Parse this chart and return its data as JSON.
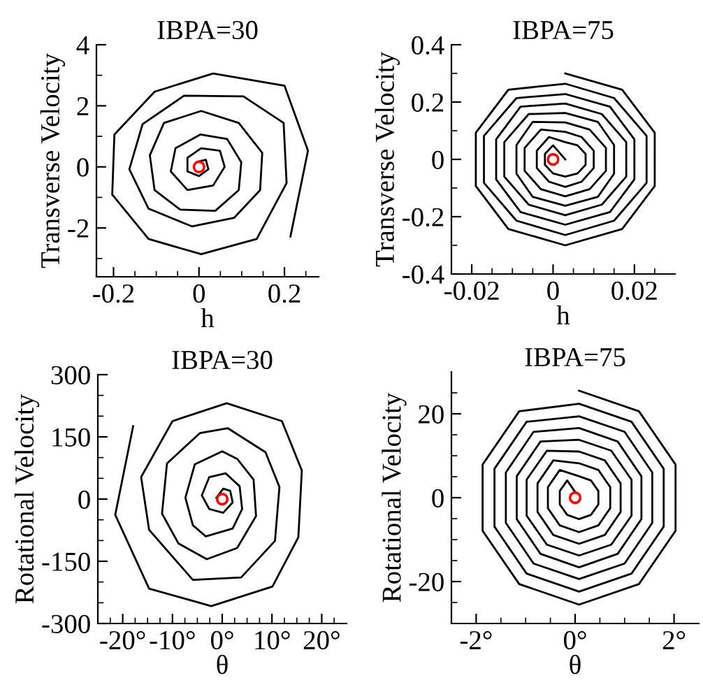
{
  "chart_data": [
    {
      "type": "line",
      "title": "IBPA=30",
      "xlabel": "h",
      "ylabel": "Transverse Velocity",
      "xlim": [
        -0.24,
        0.28
      ],
      "ylim": [
        -3.6,
        4
      ],
      "xticks": [
        -0.2,
        {
          "value": -0.15,
          "label": null
        },
        {
          "value": -0.1,
          "label": null
        },
        {
          "value": -0.05,
          "label": null
        },
        0,
        {
          "value": 0.05,
          "label": null
        },
        {
          "value": 0.1,
          "label": null
        },
        {
          "value": 0.15,
          "label": null
        },
        0.2,
        {
          "value": 0.25,
          "label": null
        }
      ],
      "yticks": [
        {
          "value": -3,
          "label": null
        },
        -2,
        {
          "value": -1,
          "label": null
        },
        0,
        {
          "value": 1,
          "label": null
        },
        2,
        {
          "value": 3,
          "label": null
        },
        4
      ],
      "series": [
        {
          "color": "#000000",
          "x": [
            0.214,
            0.255,
            0.2,
            0.033,
            -0.104,
            -0.198,
            -0.203,
            -0.118,
            0.005,
            0.135,
            0.205,
            0.198,
            0.104,
            -0.035,
            -0.132,
            -0.163,
            -0.118,
            -0.016,
            0.082,
            0.143,
            0.148,
            0.093,
            0.005,
            -0.082,
            -0.115,
            -0.104,
            -0.044,
            0.038,
            0.093,
            0.099,
            0.066,
            0.003,
            -0.055,
            -0.066,
            -0.027,
            0.033,
            0.06,
            0.049,
            0.005,
            -0.027,
            -0.027,
            0.0,
            0.022,
            0.016,
            0.0,
            -0.005
          ],
          "values": [
            -2.28,
            0.53,
            2.66,
            3.06,
            2.46,
            1.06,
            -0.91,
            -2.36,
            -2.86,
            -2.36,
            -0.53,
            1.44,
            2.31,
            2.33,
            1.4,
            -0.08,
            -1.37,
            -1.95,
            -1.67,
            -0.76,
            0.46,
            1.44,
            1.83,
            1.44,
            0.38,
            -0.76,
            -1.4,
            -1.44,
            -0.76,
            0.15,
            0.91,
            1.06,
            0.61,
            -0.15,
            -0.76,
            -0.61,
            0.0,
            0.53,
            0.61,
            0.3,
            -0.15,
            -0.3,
            -0.08,
            0.23,
            0.18,
            0.0
          ]
        },
        {
          "type": "scatter",
          "marker": "circle",
          "color": "#ff0000",
          "x": [
            0
          ],
          "values": [
            0
          ]
        }
      ]
    },
    {
      "type": "line",
      "title": "IBPA=75",
      "xlabel": "h",
      "ylabel": "Transverse Velocity",
      "xlim": [
        -0.025,
        0.03
      ],
      "ylim": [
        -0.4,
        0.4
      ],
      "xticks": [
        -0.02,
        {
          "value": -0.015,
          "label": null
        },
        {
          "value": -0.01,
          "label": null
        },
        {
          "value": -0.005,
          "label": null
        },
        0,
        {
          "value": 0.005,
          "label": null
        },
        {
          "value": 0.01,
          "label": null
        },
        {
          "value": 0.015,
          "label": null
        },
        0.02,
        {
          "value": 0.025,
          "label": null
        }
      ],
      "yticks": [
        -0.4,
        {
          "value": -0.3,
          "label": null
        },
        -0.2,
        {
          "value": -0.1,
          "label": null
        },
        0,
        {
          "value": 0.1,
          "label": null
        },
        0.2,
        {
          "value": 0.3,
          "label": null
        },
        0.4
      ],
      "series": [
        {
          "color": "#000000",
          "x": [
            0.003,
            0.017,
            0.025,
            0.025,
            0.017,
            0.003,
            -0.011,
            -0.019,
            -0.019,
            -0.011,
            0.003,
            0.015,
            0.023,
            0.023,
            0.015,
            0.003,
            -0.009,
            -0.017,
            -0.017,
            -0.009,
            0.003,
            0.014,
            0.02,
            0.02,
            0.014,
            0.003,
            -0.008,
            -0.014,
            -0.014,
            -0.008,
            0.003,
            0.012,
            0.018,
            0.018,
            0.012,
            0.003,
            -0.006,
            -0.012,
            -0.012,
            -0.006,
            0.003,
            0.011,
            0.015,
            0.015,
            0.011,
            0.003,
            -0.005,
            -0.009,
            -0.009,
            -0.005,
            0.003,
            0.009,
            0.013,
            0.013,
            0.009,
            0.003,
            -0.003,
            -0.007,
            -0.007,
            -0.003,
            0.003,
            0.007,
            0.01,
            0.01,
            0.007,
            0.003,
            -0.001,
            -0.004,
            -0.004,
            -0.001,
            0.003,
            0.006,
            0.008,
            0.008,
            0.006,
            0.003,
            0.0,
            -0.002,
            -0.002,
            0.0,
            0.003
          ],
          "values": [
            0.3,
            0.243,
            0.093,
            -0.093,
            -0.243,
            -0.3,
            -0.243,
            -0.093,
            0.093,
            0.243,
            0.264,
            0.214,
            0.082,
            -0.082,
            -0.214,
            -0.264,
            -0.214,
            -0.082,
            0.082,
            0.214,
            0.228,
            0.184,
            0.07,
            -0.07,
            -0.184,
            -0.228,
            -0.184,
            -0.07,
            0.07,
            0.184,
            0.195,
            0.158,
            0.06,
            -0.06,
            -0.158,
            -0.195,
            -0.158,
            -0.06,
            0.06,
            0.158,
            0.162,
            0.131,
            0.05,
            -0.05,
            -0.131,
            -0.162,
            -0.131,
            -0.05,
            0.05,
            0.131,
            0.129,
            0.104,
            0.04,
            -0.04,
            -0.104,
            -0.129,
            -0.104,
            -0.04,
            0.04,
            0.104,
            0.096,
            0.078,
            0.03,
            -0.03,
            -0.078,
            -0.096,
            -0.078,
            -0.03,
            0.03,
            0.078,
            0.06,
            0.049,
            0.019,
            -0.019,
            -0.049,
            -0.06,
            -0.049,
            -0.019,
            0.019,
            0.049,
            0.0
          ]
        },
        {
          "type": "scatter",
          "marker": "circle",
          "color": "#ff0000",
          "x": [
            0
          ],
          "values": [
            0
          ]
        }
      ]
    },
    {
      "type": "line",
      "title": "IBPA=30",
      "xlabel": "θ",
      "ylabel": "Rotational Velocity",
      "xlim": [
        -25,
        25
      ],
      "ylim": [
        -300,
        300
      ],
      "xticks": [
        {
          "value": -22.5,
          "label": null
        },
        {
          "value": -20,
          "label": "-20°"
        },
        {
          "value": -17.5,
          "label": null
        },
        {
          "value": -15,
          "label": null
        },
        {
          "value": -12.5,
          "label": null
        },
        {
          "value": -10,
          "label": "-10°"
        },
        {
          "value": -7.5,
          "label": null
        },
        {
          "value": -5,
          "label": null
        },
        {
          "value": -2.5,
          "label": null
        },
        {
          "value": 0,
          "label": "0°"
        },
        {
          "value": 2.5,
          "label": null
        },
        {
          "value": 5,
          "label": null
        },
        {
          "value": 7.5,
          "label": null
        },
        {
          "value": 10,
          "label": "10°"
        },
        {
          "value": 12.5,
          "label": null
        },
        {
          "value": 15,
          "label": null
        },
        {
          "value": 17.5,
          "label": null
        },
        {
          "value": 20,
          "label": "20°"
        },
        {
          "value": 22.5,
          "label": null
        }
      ],
      "yticks": [
        -300,
        {
          "value": -250,
          "label": null
        },
        {
          "value": -200,
          "label": null
        },
        -150,
        {
          "value": -100,
          "label": null
        },
        {
          "value": -50,
          "label": null
        },
        0,
        {
          "value": 50,
          "label": null
        },
        {
          "value": 100,
          "label": null
        },
        150,
        {
          "value": 200,
          "label": null
        },
        {
          "value": 250,
          "label": null
        },
        300
      ],
      "series": [
        {
          "color": "#000000",
          "x": [
            -17.9,
            -21.5,
            -14.7,
            -2.2,
            10.1,
            15.3,
            16.0,
            12.0,
            0.9,
            -10.0,
            -16.3,
            -14.7,
            -5.9,
            3.8,
            10.6,
            11.5,
            8.7,
            1.1,
            -4.5,
            -11.1,
            -12.1,
            -8.8,
            -3.1,
            3.0,
            6.8,
            6.3,
            3.0,
            0.0,
            -5.5,
            -7.4,
            -5.9,
            -3.3,
            2.1,
            4.0,
            3.5,
            0.7,
            -2.6,
            -4.1,
            -2.6,
            0.2,
            2.1,
            1.6,
            0.2,
            -1.2,
            -0.3,
            0.0
          ],
          "values": [
            176,
            -38,
            -216,
            -258,
            -211,
            -92,
            69,
            188,
            231,
            188,
            53,
            -74,
            -195,
            -189,
            -101,
            29,
            113,
            171,
            159,
            86,
            -35,
            -107,
            -145,
            -118,
            -41,
            47,
            97,
            115,
            84,
            3,
            -63,
            -90,
            -71,
            -24,
            31,
            62,
            53,
            9,
            -24,
            -33,
            -8,
            20,
            25,
            3,
            -8,
            0
          ]
        },
        {
          "type": "scatter",
          "marker": "circle",
          "color": "#ff0000",
          "x": [
            0
          ],
          "values": [
            0
          ]
        }
      ]
    },
    {
      "type": "line",
      "title": "IBPA=75",
      "xlabel": "θ",
      "ylabel": "Rotational Velocity",
      "xlim": [
        -2.5,
        2.5
      ],
      "ylim": [
        -30,
        30
      ],
      "xticks": [
        {
          "value": -2,
          "label": "-2°"
        },
        {
          "value": -1.5,
          "label": null
        },
        {
          "value": -1,
          "label": null
        },
        {
          "value": -0.5,
          "label": null
        },
        {
          "value": 0,
          "label": "0°"
        },
        {
          "value": 0.5,
          "label": null
        },
        {
          "value": 1,
          "label": null
        },
        {
          "value": 1.5,
          "label": null
        },
        {
          "value": 2,
          "label": "2°"
        }
      ],
      "yticks": [
        {
          "value": -25,
          "label": null
        },
        -20,
        {
          "value": -15,
          "label": null
        },
        {
          "value": -10,
          "label": null
        },
        {
          "value": -5,
          "label": null
        },
        0,
        {
          "value": 5,
          "label": null
        },
        {
          "value": 10,
          "label": null
        },
        {
          "value": 15,
          "label": null
        },
        20,
        {
          "value": 25,
          "label": null
        }
      ],
      "series": [
        {
          "color": "#000000",
          "x": [
            0.08,
            1.29,
            2.03,
            2.03,
            1.29,
            0.08,
            -1.13,
            -1.87,
            -1.87,
            -1.13,
            0.08,
            1.14,
            1.79,
            1.79,
            1.14,
            0.08,
            -0.98,
            -1.63,
            -1.63,
            -0.98,
            0.08,
            1.0,
            1.56,
            1.56,
            1.0,
            0.08,
            -0.84,
            -1.4,
            -1.4,
            -0.84,
            0.08,
            0.86,
            1.34,
            1.34,
            0.86,
            0.08,
            -0.7,
            -1.18,
            -1.18,
            -0.7,
            0.08,
            0.73,
            1.14,
            1.14,
            0.73,
            0.08,
            -0.57,
            -0.98,
            -0.98,
            -0.57,
            0.08,
            0.6,
            0.92,
            0.92,
            0.6,
            0.08,
            -0.44,
            -0.76,
            -0.76,
            -0.44,
            0.08,
            0.47,
            0.71,
            0.71,
            0.47,
            0.08,
            -0.31,
            -0.55,
            -0.55,
            -0.31,
            0.08,
            0.32,
            0.47,
            0.47,
            0.32,
            0.08,
            -0.16,
            -0.31,
            -0.31,
            -0.16,
            0.08
          ],
          "values": [
            25.5,
            20.6,
            7.9,
            -7.9,
            -20.6,
            -25.5,
            -20.6,
            -7.9,
            7.9,
            20.6,
            22.4,
            18.1,
            6.9,
            -6.9,
            -18.1,
            -22.4,
            -18.1,
            -6.9,
            6.9,
            18.1,
            19.4,
            15.7,
            6.0,
            -6.0,
            -15.7,
            -19.4,
            -15.7,
            -6.0,
            6.0,
            15.7,
            16.6,
            13.4,
            5.1,
            -5.1,
            -13.4,
            -16.6,
            -13.4,
            -5.1,
            5.1,
            13.4,
            13.8,
            11.2,
            4.3,
            -4.3,
            -11.2,
            -13.8,
            -11.2,
            -4.3,
            4.3,
            11.2,
            11.0,
            8.9,
            3.4,
            -3.4,
            -8.9,
            -11.0,
            -8.9,
            -3.4,
            3.4,
            8.9,
            8.2,
            6.6,
            2.5,
            -2.5,
            -6.6,
            -8.2,
            -6.6,
            -2.5,
            2.5,
            6.6,
            5.1,
            4.1,
            1.6,
            -1.6,
            -4.1,
            -5.1,
            -4.1,
            -1.6,
            1.6,
            4.1,
            0.0
          ]
        },
        {
          "type": "scatter",
          "marker": "circle",
          "color": "#ff0000",
          "x": [
            0
          ],
          "values": [
            0
          ]
        }
      ]
    }
  ]
}
